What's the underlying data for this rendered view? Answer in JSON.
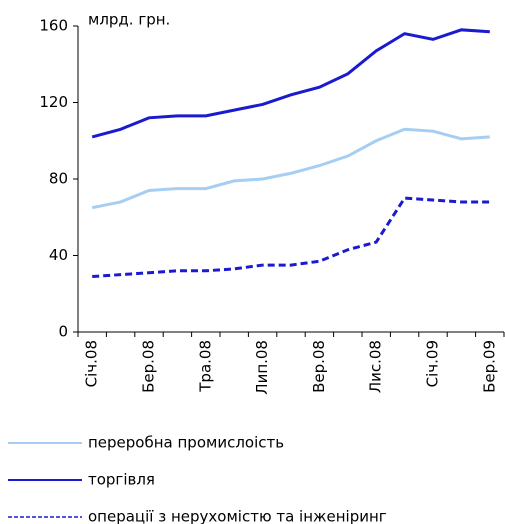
{
  "chart_data": {
    "type": "line",
    "y_label": "млрд. грн.",
    "categories": [
      "Січ.08",
      null,
      "Бер.08",
      null,
      "Тра.08",
      null,
      "Лип.08",
      null,
      "Вер.08",
      null,
      "Лис.08",
      null,
      "Січ.09",
      null,
      "Бер.09"
    ],
    "series": [
      {
        "name": "переробна промислоість",
        "color": "#a6cef3",
        "dash": false,
        "values": [
          65,
          68,
          74,
          75,
          75,
          79,
          80,
          83,
          87,
          92,
          100,
          106,
          105,
          101,
          102
        ]
      },
      {
        "name": "торгівля",
        "color": "#1a1ad0",
        "dash": false,
        "values": [
          102,
          106,
          112,
          113,
          113,
          116,
          119,
          124,
          128,
          135,
          147,
          156,
          153,
          158,
          157
        ]
      },
      {
        "name": "операції з нерухомістю та інженіринг",
        "color": "#1a1ad0",
        "dash": true,
        "values": [
          29,
          30,
          31,
          32,
          32,
          33,
          35,
          35,
          37,
          43,
          47,
          70,
          69,
          68,
          68
        ]
      }
    ],
    "ylim": [
      0,
      160
    ],
    "yticks": [
      0,
      40,
      80,
      120,
      160
    ],
    "grid": false
  }
}
